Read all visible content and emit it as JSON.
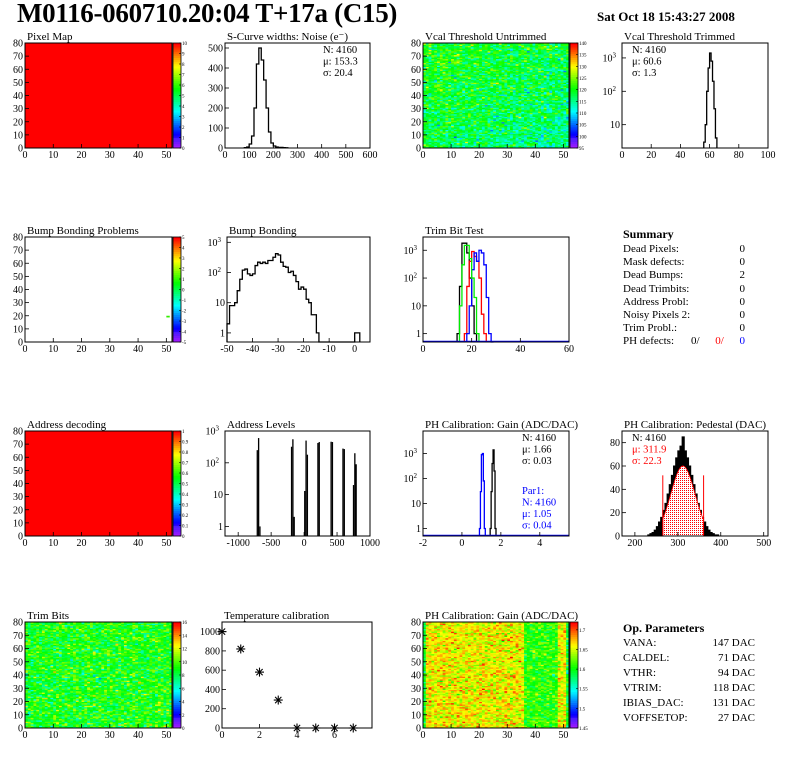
{
  "header": {
    "title": "M0116-060710.20:04 T+17a (C15)",
    "date": "Sat Oct 18 15:43:27 2008"
  },
  "colors": {
    "hist_line": "#000000",
    "fit": "#ff0000",
    "par1": "#0000ff",
    "trim_green": "#00ee00",
    "trim_red": "#ff0000",
    "trim_blue": "#0000ff"
  },
  "summary": {
    "title": "Summary",
    "rows": [
      {
        "label": "Dead Pixels:",
        "value": "0"
      },
      {
        "label": "Mask defects:",
        "value": "0"
      },
      {
        "label": "Dead Bumps:",
        "value": "2"
      },
      {
        "label": "Dead Trimbits:",
        "value": "0"
      },
      {
        "label": "Address Probl:",
        "value": "0"
      },
      {
        "label": "Noisy Pixels 2:",
        "value": "0"
      },
      {
        "label": "Trim Probl.:",
        "value": "0"
      }
    ],
    "ph_defects": {
      "label": "PH defects:",
      "v1": "0/",
      "v2": "0/",
      "v3": "0"
    }
  },
  "op_params": {
    "title": "Op. Parameters",
    "rows": [
      {
        "label": "VANA:",
        "value": "147 DAC"
      },
      {
        "label": "CALDEL:",
        "value": "71 DAC"
      },
      {
        "label": "VTHR:",
        "value": "94 DAC"
      },
      {
        "label": "VTRIM:",
        "value": "118 DAC"
      },
      {
        "label": "IBIAS_DAC:",
        "value": "131 DAC"
      },
      {
        "label": "VOFFSETOP:",
        "value": "27 DAC"
      }
    ]
  },
  "chart_data": [
    {
      "type": "heatmap",
      "title": "Pixel Map",
      "xlim": [
        0,
        52
      ],
      "ylim": [
        0,
        80
      ],
      "xticks": [
        0,
        10,
        20,
        30,
        40,
        50
      ],
      "yticks": [
        0,
        10,
        20,
        30,
        40,
        50,
        60,
        70,
        80
      ],
      "zlim": [
        0,
        10
      ],
      "zticks": [
        0,
        1,
        2,
        3,
        4,
        5,
        6,
        7,
        8,
        9,
        10
      ],
      "uniform_value": 10
    },
    {
      "type": "bar",
      "title": "S-Curve widths: Noise (e⁻)",
      "xlim": [
        0,
        600
      ],
      "ylim": [
        0,
        525
      ],
      "xticks": [
        0,
        100,
        200,
        300,
        400,
        500,
        600
      ],
      "yticks": [
        0,
        100,
        200,
        300,
        400,
        500
      ],
      "series": [
        {
          "x_start": 80,
          "bin_width": 10,
          "counts": [
            2,
            5,
            20,
            60,
            200,
            420,
            500,
            440,
            340,
            200,
            80,
            25,
            10,
            5,
            3,
            3,
            2,
            1
          ]
        }
      ],
      "stats": [
        "N: 4160",
        "μ: 153.3",
        "σ: 20.4"
      ]
    },
    {
      "type": "heatmap",
      "title": "Vcal Threshold Untrimmed",
      "xlim": [
        0,
        52
      ],
      "ylim": [
        0,
        80
      ],
      "xticks": [
        0,
        10,
        20,
        30,
        40,
        50
      ],
      "yticks": [
        0,
        10,
        20,
        30,
        40,
        50,
        60,
        70,
        80
      ],
      "zlim": [
        95,
        140
      ],
      "zticks": [
        95,
        100,
        105,
        110,
        115,
        120,
        125,
        130,
        135,
        140
      ],
      "approx_mean": 118,
      "approx_sd": 4
    },
    {
      "type": "bar",
      "title": "Vcal Threshold Trimmed",
      "log_y": true,
      "xlim": [
        0,
        100
      ],
      "ylim": [
        2,
        2800
      ],
      "xticks": [
        0,
        20,
        40,
        60,
        80,
        100
      ],
      "yticks": [
        10,
        100,
        1000
      ],
      "series": [
        {
          "x_start": 56,
          "bin_width": 1,
          "counts": [
            3,
            10,
            100,
            500,
            1400,
            800,
            200,
            30,
            4
          ]
        }
      ],
      "stats": [
        "N: 4160",
        "μ: 60.6",
        "σ:  1.3"
      ]
    },
    {
      "type": "heatmap",
      "title": "Bump Bonding Problems",
      "xlim": [
        0,
        52
      ],
      "ylim": [
        0,
        80
      ],
      "xticks": [
        0,
        10,
        20,
        30,
        40,
        50
      ],
      "yticks": [
        0,
        10,
        20,
        30,
        40,
        50,
        60,
        70,
        80
      ],
      "zlim": [
        -5,
        5
      ],
      "zticks": [
        -5,
        -4,
        -3,
        -2,
        -1,
        0,
        1,
        2,
        3,
        4,
        5
      ],
      "cells": [
        {
          "x": 50,
          "y": 19,
          "z": 0.5
        }
      ]
    },
    {
      "type": "bar",
      "title": "Bump Bonding",
      "log_y": true,
      "xlim": [
        -50,
        6
      ],
      "ylim": [
        0.5,
        1500
      ],
      "xticks": [
        -50,
        -40,
        -30,
        -20,
        -10,
        0
      ],
      "yticks": [
        1,
        10,
        100,
        1000
      ],
      "series": [
        {
          "x_start": -50,
          "bin_width": 1,
          "counts": [
            2,
            8,
            8,
            10,
            25,
            60,
            120,
            130,
            90,
            80,
            90,
            170,
            220,
            200,
            220,
            200,
            250,
            250,
            320,
            420,
            380,
            220,
            160,
            150,
            100,
            110,
            80,
            50,
            28,
            33,
            28,
            13,
            10,
            4,
            4,
            1,
            0,
            0,
            0,
            0,
            0,
            0,
            0,
            0,
            0,
            0,
            0,
            0,
            0,
            0,
            1,
            1
          ]
        }
      ]
    },
    {
      "type": "bar",
      "title": "Trim Bit Test",
      "log_y": true,
      "xlim": [
        0,
        60
      ],
      "ylim": [
        0.5,
        3000
      ],
      "xticks": [
        0,
        20,
        40,
        60
      ],
      "yticks": [
        1,
        10,
        100,
        1000
      ],
      "series": [
        {
          "color": "#000000",
          "x_start": 14,
          "bin_width": 1,
          "counts": [
            1,
            50,
            1800,
            1800,
            800,
            100,
            10,
            1
          ]
        },
        {
          "color": "#ff0000",
          "x_start": 17,
          "bin_width": 1,
          "counts": [
            1,
            50,
            400,
            900,
            600,
            400,
            100,
            5,
            1
          ]
        },
        {
          "color": "#0000ff",
          "x_start": 18,
          "bin_width": 1,
          "counts": [
            1,
            10,
            200,
            800,
            400,
            1000,
            800,
            300,
            20,
            1,
            0
          ]
        },
        {
          "color": "#00ee00",
          "x_start": 15,
          "bin_width": 1,
          "counts": [
            10,
            300,
            1500,
            1500,
            500,
            100,
            20,
            1
          ]
        }
      ]
    },
    null,
    {
      "type": "heatmap",
      "title": "Address decoding",
      "xlim": [
        0,
        52
      ],
      "ylim": [
        0,
        80
      ],
      "xticks": [
        0,
        10,
        20,
        30,
        40,
        50
      ],
      "yticks": [
        0,
        10,
        20,
        30,
        40,
        50,
        60,
        70,
        80
      ],
      "zlim": [
        0,
        1
      ],
      "zticks": [
        0,
        0.1,
        0.2,
        0.3,
        0.4,
        0.5,
        0.6,
        0.7,
        0.8,
        0.9,
        1
      ],
      "uniform_value": 1
    },
    {
      "type": "bar",
      "title": "Address Levels",
      "log_y": true,
      "xlim": [
        -1200,
        1000
      ],
      "ylim": [
        0.5,
        1000
      ],
      "xticks": [
        -1000,
        -500,
        0,
        500,
        1000
      ],
      "yticks": [
        1,
        10,
        100,
        1000
      ],
      "bin_width": 20,
      "bins": [
        [
          -710,
          250
        ],
        [
          -690,
          600
        ],
        [
          -670,
          1
        ],
        [
          -190,
          320
        ],
        [
          -170,
          550
        ],
        [
          -150,
          2
        ],
        [
          10,
          13
        ],
        [
          30,
          500
        ],
        [
          50,
          180
        ],
        [
          210,
          420
        ],
        [
          230,
          450
        ],
        [
          410,
          460
        ],
        [
          430,
          450
        ],
        [
          590,
          280
        ],
        [
          610,
          270
        ],
        [
          750,
          20
        ],
        [
          770,
          200
        ],
        [
          790,
          90
        ]
      ]
    },
    {
      "type": "bar",
      "title": "PH Calibration: Gain (ADC/DAC)",
      "log_y": true,
      "xlim": [
        -2,
        5.5
      ],
      "ylim": [
        0.5,
        8000
      ],
      "xticks": [
        -2,
        0,
        2,
        4
      ],
      "yticks": [
        1,
        10,
        100,
        1000
      ],
      "series": [
        {
          "color": "#0000ff",
          "x_start": 0.9,
          "bin_width": 0.05,
          "counts": [
            1,
            30,
            900,
            1000,
            80,
            1
          ]
        },
        {
          "color": "#000000",
          "x_start": 1.45,
          "bin_width": 0.05,
          "counts": [
            1,
            30,
            400,
            1400,
            200,
            1
          ]
        }
      ],
      "stats": [
        "N: 4160",
        "μ: 1.66",
        "σ: 0.03"
      ],
      "stats2": [
        "Par1:",
        "N: 4160",
        "μ: 1.05",
        "σ: 0.04"
      ]
    },
    {
      "type": "bar",
      "title": "PH Calibration: Pedestal (DAC)",
      "xlim": [
        170,
        510
      ],
      "ylim": [
        0,
        90
      ],
      "xticks": [
        200,
        300,
        400,
        500
      ],
      "yticks": [
        0,
        20,
        40,
        60,
        80
      ],
      "series": [
        {
          "x_start": 230,
          "bin_width": 5,
          "counts": [
            1,
            2,
            3,
            5,
            8,
            12,
            16,
            22,
            28,
            36,
            44,
            52,
            60,
            67,
            73,
            77,
            85,
            73,
            67,
            60,
            52,
            44,
            36,
            28,
            22,
            16,
            12,
            8,
            5,
            3,
            2,
            1,
            1,
            0
          ]
        }
      ],
      "fit": {
        "mean": 311.9,
        "sigma": 22.3,
        "range": [
          265,
          360
        ],
        "peak": 60
      },
      "stats": [
        "N: 4160"
      ],
      "fit_stats": [
        "μ: 311.9",
        "σ: 22.3"
      ]
    },
    {
      "type": "heatmap",
      "title": "Trim Bits",
      "xlim": [
        0,
        52
      ],
      "ylim": [
        0,
        80
      ],
      "xticks": [
        0,
        10,
        20,
        30,
        40,
        50
      ],
      "yticks": [
        0,
        10,
        20,
        30,
        40,
        50,
        60,
        70,
        80
      ],
      "zlim": [
        0,
        16
      ],
      "zticks": [
        0,
        2,
        4,
        6,
        8,
        10,
        12,
        14,
        16
      ],
      "approx_mean": 9,
      "approx_sd": 1.4
    },
    {
      "type": "scatter",
      "title": "Temperature calibration",
      "xlim": [
        0,
        8
      ],
      "ylim": [
        0,
        1100
      ],
      "xticks": [
        0,
        2,
        4,
        6
      ],
      "yticks": [
        0,
        200,
        400,
        600,
        800,
        1000
      ],
      "points": [
        [
          0,
          1000
        ],
        [
          1,
          820
        ],
        [
          2,
          580
        ],
        [
          3,
          290
        ],
        [
          4,
          0
        ],
        [
          5,
          0
        ],
        [
          6,
          0
        ],
        [
          7,
          0
        ]
      ]
    },
    {
      "type": "heatmap",
      "title": "PH Calibration: Gain (ADC/DAC)",
      "xlim": [
        0,
        52
      ],
      "ylim": [
        0,
        80
      ],
      "xticks": [
        0,
        10,
        20,
        30,
        40,
        50
      ],
      "yticks": [
        0,
        10,
        20,
        30,
        40,
        50,
        60,
        70,
        80
      ],
      "zlim": [
        1.45,
        1.72
      ],
      "zticks": [
        1.45,
        1.5,
        1.55,
        1.6,
        1.65,
        1.7
      ],
      "approx_mean": 1.66,
      "approx_sd": 0.02,
      "lower_gain_columns": [
        36,
        47
      ]
    }
  ]
}
